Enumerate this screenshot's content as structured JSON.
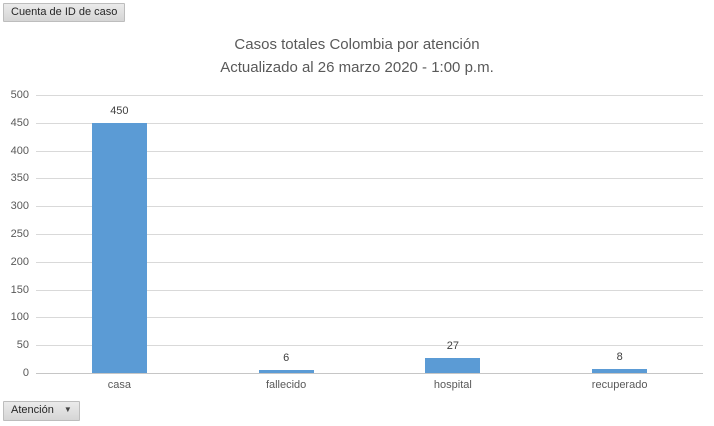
{
  "buttons": {
    "value_field": {
      "label": "Cuenta de ID de caso"
    },
    "axis_field": {
      "label": "Atención",
      "arrow": "▼"
    }
  },
  "chart_data": {
    "type": "bar",
    "title": "Casos totales Colombia por atención",
    "subtitle": "Actualizado al 26 marzo 2020 - 1:00 p.m.",
    "categories": [
      "casa",
      "fallecido",
      "hospital",
      "recuperado"
    ],
    "values": [
      450,
      6,
      27,
      8
    ],
    "data_labels": true,
    "xlabel": "",
    "ylabel": "",
    "ylim": [
      0,
      500
    ],
    "ytick_step": 50,
    "grid": true,
    "legend": false
  },
  "colors": {
    "bar": "#5B9BD5",
    "gridline": "#D9D9D9",
    "axis_line": "#C6C6C6",
    "axis_text": "#595959",
    "title_text": "#595959",
    "data_label_text": "#404040"
  }
}
